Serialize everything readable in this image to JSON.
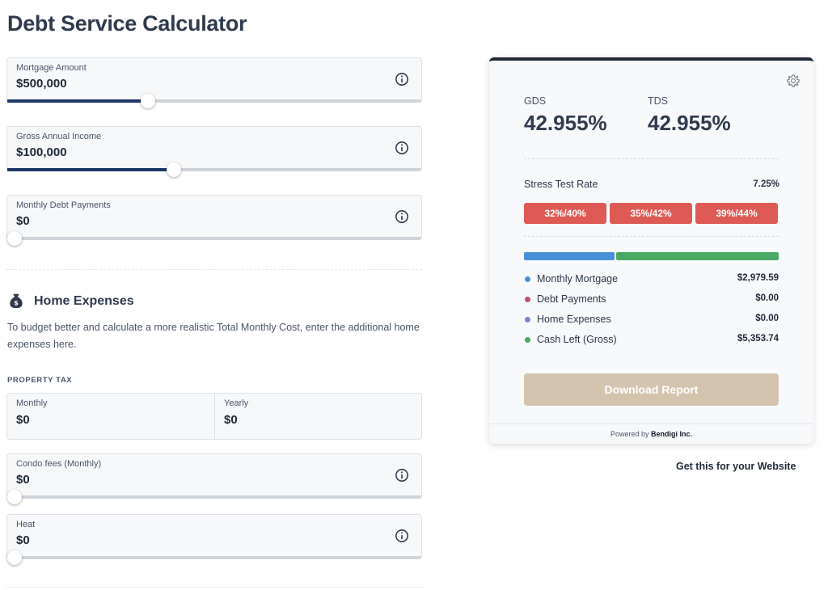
{
  "title": "Debt Service Calculator",
  "fields": {
    "mortgage": {
      "label": "Mortgage Amount",
      "value": "$500,000",
      "slider_fraction": 0.339
    },
    "income": {
      "label": "Gross Annual Income",
      "value": "$100,000",
      "slider_fraction": 0.402
    },
    "debt": {
      "label": "Monthly Debt Payments",
      "value": "$0",
      "slider_fraction": 0.0
    },
    "condo": {
      "label": "Condo fees (Monthly)",
      "value": "$0",
      "slider_fraction": 0.0
    },
    "heat": {
      "label": "Heat",
      "value": "$0",
      "slider_fraction": 0.0
    }
  },
  "home_expenses": {
    "title": "Home Expenses",
    "description": "To budget better and calculate a more realistic Total Monthly Cost, enter the additional home expenses here.",
    "property_tax_heading": "PROPERTY TAX",
    "monthly": {
      "label": "Monthly",
      "value": "$0"
    },
    "yearly": {
      "label": "Yearly",
      "value": "$0"
    }
  },
  "results": {
    "gds_label": "GDS",
    "gds_value": "42.955%",
    "tds_label": "TDS",
    "tds_value": "42.955%",
    "stress_label": "Stress Test Rate",
    "stress_value": "7.25%",
    "thresholds": [
      "32%/40%",
      "35%/42%",
      "39%/44%"
    ],
    "breakdown": [
      {
        "label": "Monthly Mortgage",
        "value": "$2,979.59",
        "color": "#4a90d9"
      },
      {
        "label": "Debt Payments",
        "value": "$0.00",
        "color": "#c0507a"
      },
      {
        "label": "Home Expenses",
        "value": "$0.00",
        "color": "#7b83d6"
      },
      {
        "label": "Cash Left (Gross)",
        "value": "$5,353.74",
        "color": "#48aa62"
      }
    ],
    "download_label": "Download Report",
    "powered_by_prefix": "Powered by",
    "powered_by_brand": "Bendigi Inc."
  },
  "get_website_link": "Get this for your Website",
  "colors": {
    "slider_fill": "#1e3568",
    "threshold_pill": "#de5a55",
    "download_button": "#d4c3ad",
    "bar_mortgage": "#4a90d9",
    "bar_cash": "#48aa62"
  },
  "icons": {
    "field_info": "info-icon",
    "settings": "gear-icon",
    "home_expenses": "money-bag-icon"
  }
}
